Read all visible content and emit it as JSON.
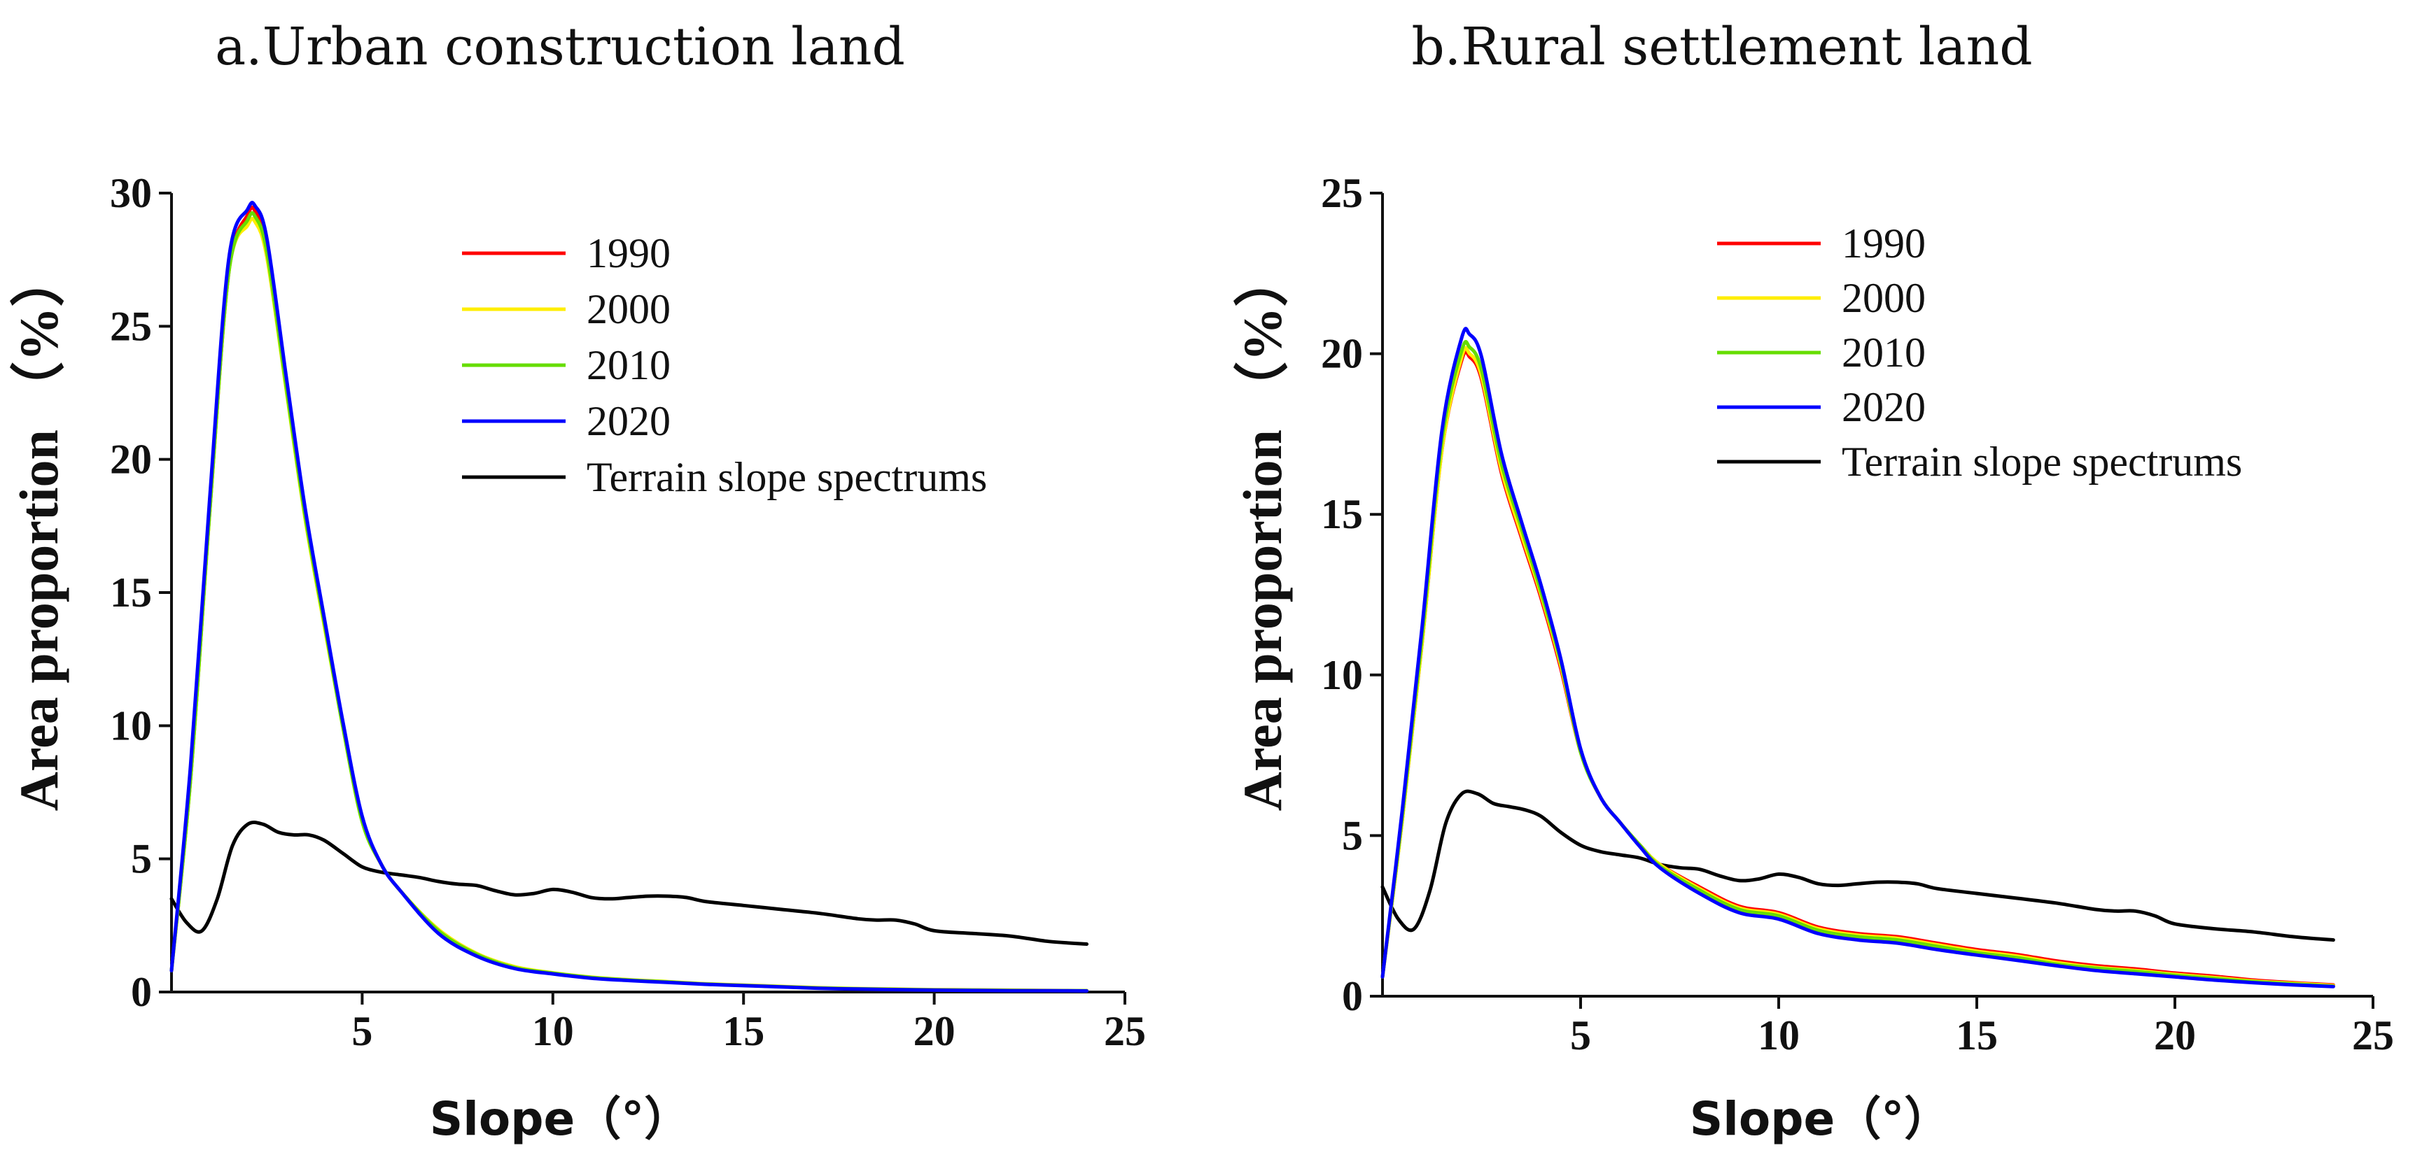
{
  "chart_data": [
    {
      "id": "a",
      "type": "line",
      "title": "a.Urban construction land",
      "xlabel": "Slope（°）",
      "ylabel": "Area proportion （%）",
      "xlim": [
        0,
        25
      ],
      "ylim": [
        0,
        30
      ],
      "xticks": [
        5,
        10,
        15,
        20,
        25
      ],
      "yticks": [
        0,
        5,
        10,
        15,
        20,
        25,
        30
      ],
      "series": [
        {
          "name": "1990",
          "color": "#ff0000",
          "x": [
            0,
            0.5,
            1,
            1.5,
            2,
            2.2,
            2.5,
            3,
            3.5,
            4,
            4.5,
            5,
            5.5,
            6,
            7,
            8,
            9,
            10,
            11,
            12,
            13,
            14,
            15,
            16,
            17,
            18,
            19,
            20,
            21,
            22,
            23,
            24
          ],
          "values": [
            0.8,
            8,
            18,
            27,
            29.2,
            29.3,
            28,
            23,
            18,
            14,
            10,
            6.5,
            4.8,
            3.8,
            2.3,
            1.4,
            0.9,
            0.7,
            0.55,
            0.45,
            0.38,
            0.3,
            0.25,
            0.2,
            0.15,
            0.12,
            0.1,
            0.08,
            0.07,
            0.06,
            0.05,
            0.05
          ]
        },
        {
          "name": "2000",
          "color": "#ffee00",
          "x": [
            0,
            0.5,
            1,
            1.5,
            2,
            2.2,
            2.5,
            3,
            3.5,
            4,
            4.5,
            5,
            5.5,
            6,
            7,
            8,
            9,
            10,
            11,
            12,
            13,
            14,
            15,
            16,
            17,
            18,
            19,
            20,
            21,
            22,
            23,
            24
          ],
          "values": [
            0.8,
            8,
            18,
            27,
            28.8,
            28.9,
            27.6,
            22.7,
            17.8,
            13.8,
            9.9,
            6.4,
            4.8,
            3.8,
            2.35,
            1.45,
            0.95,
            0.72,
            0.56,
            0.46,
            0.39,
            0.31,
            0.26,
            0.21,
            0.16,
            0.13,
            0.11,
            0.09,
            0.08,
            0.07,
            0.06,
            0.05
          ]
        },
        {
          "name": "2010",
          "color": "#66dd00",
          "x": [
            0,
            0.5,
            1,
            1.5,
            2,
            2.2,
            2.5,
            3,
            3.5,
            4,
            4.5,
            5,
            5.5,
            6,
            7,
            8,
            9,
            10,
            11,
            12,
            13,
            14,
            15,
            16,
            17,
            18,
            19,
            20,
            21,
            22,
            23,
            24
          ],
          "values": [
            0.8,
            8,
            18,
            27,
            29,
            29.1,
            27.8,
            22.8,
            17.9,
            13.9,
            9.9,
            6.4,
            4.8,
            3.8,
            2.3,
            1.42,
            0.92,
            0.71,
            0.55,
            0.45,
            0.38,
            0.3,
            0.25,
            0.2,
            0.15,
            0.12,
            0.1,
            0.08,
            0.07,
            0.06,
            0.05,
            0.05
          ]
        },
        {
          "name": "2020",
          "color": "#0000ff",
          "x": [
            0,
            0.5,
            1,
            1.5,
            2,
            2.2,
            2.5,
            3,
            3.5,
            4,
            4.5,
            5,
            5.5,
            6,
            7,
            8,
            9,
            10,
            11,
            12,
            13,
            14,
            15,
            16,
            17,
            18,
            19,
            20,
            21,
            22,
            23,
            24
          ],
          "values": [
            0.8,
            8.5,
            18.5,
            27.5,
            29.4,
            29.5,
            28.3,
            23.2,
            18.2,
            14.1,
            10.1,
            6.6,
            4.8,
            3.8,
            2.2,
            1.35,
            0.88,
            0.68,
            0.52,
            0.43,
            0.36,
            0.29,
            0.24,
            0.19,
            0.14,
            0.11,
            0.09,
            0.07,
            0.06,
            0.05,
            0.05,
            0.04
          ]
        },
        {
          "name": "Terrain slope spectrums",
          "color": "#000000",
          "x": [
            0,
            0.4,
            0.8,
            1.2,
            1.6,
            2,
            2.4,
            2.8,
            3.2,
            3.6,
            4,
            4.5,
            5,
            5.5,
            6,
            6.5,
            7,
            7.5,
            8,
            8.5,
            9,
            9.5,
            10,
            10.5,
            11,
            11.5,
            12,
            12.5,
            13,
            13.5,
            14,
            15,
            16,
            17,
            18,
            18.5,
            19,
            19.5,
            20,
            21,
            22,
            23,
            24
          ],
          "values": [
            3.5,
            2.6,
            2.3,
            3.5,
            5.5,
            6.3,
            6.3,
            6.0,
            5.9,
            5.9,
            5.7,
            5.2,
            4.7,
            4.5,
            4.4,
            4.3,
            4.15,
            4.05,
            4.0,
            3.8,
            3.65,
            3.7,
            3.85,
            3.75,
            3.55,
            3.5,
            3.55,
            3.6,
            3.6,
            3.55,
            3.4,
            3.25,
            3.1,
            2.95,
            2.75,
            2.7,
            2.7,
            2.55,
            2.3,
            2.2,
            2.1,
            1.9,
            1.8
          ]
        }
      ],
      "legend": "upper-center"
    },
    {
      "id": "b",
      "type": "line",
      "title": "b.Rural settlement land",
      "xlabel": "Slope（°）",
      "ylabel": "Area proportion （%）",
      "xlim": [
        0,
        25
      ],
      "ylim": [
        0,
        25
      ],
      "xticks": [
        5,
        10,
        15,
        20,
        25
      ],
      "yticks": [
        0,
        5,
        10,
        15,
        20,
        25
      ],
      "series": [
        {
          "name": "1990",
          "color": "#ff0000",
          "x": [
            0,
            0.5,
            1,
            1.5,
            2,
            2.2,
            2.5,
            3,
            3.5,
            4,
            4.5,
            5,
            5.5,
            6,
            6.5,
            7,
            8,
            9,
            10,
            11,
            12,
            13,
            14,
            15,
            16,
            17,
            18,
            19,
            20,
            21,
            22,
            23,
            24
          ],
          "values": [
            0.6,
            5.5,
            11,
            17,
            19.8,
            19.9,
            19.2,
            16.3,
            14.3,
            12.4,
            10.2,
            7.6,
            6.2,
            5.4,
            4.7,
            4.1,
            3.4,
            2.8,
            2.6,
            2.15,
            1.95,
            1.85,
            1.65,
            1.45,
            1.3,
            1.1,
            0.95,
            0.85,
            0.72,
            0.62,
            0.5,
            0.42,
            0.35
          ]
        },
        {
          "name": "2000",
          "color": "#ffee00",
          "x": [
            0,
            0.5,
            1,
            1.5,
            2,
            2.2,
            2.5,
            3,
            3.5,
            4,
            4.5,
            5,
            5.5,
            6,
            6.5,
            7,
            8,
            9,
            10,
            11,
            12,
            13,
            14,
            15,
            16,
            17,
            18,
            19,
            20,
            21,
            22,
            23,
            24
          ],
          "values": [
            0.6,
            5.5,
            11,
            17,
            19.9,
            20.0,
            19.3,
            16.4,
            14.4,
            12.5,
            10.3,
            7.6,
            6.2,
            5.4,
            4.7,
            4.1,
            3.35,
            2.75,
            2.55,
            2.1,
            1.9,
            1.8,
            1.6,
            1.4,
            1.25,
            1.05,
            0.9,
            0.8,
            0.68,
            0.58,
            0.47,
            0.4,
            0.33
          ]
        },
        {
          "name": "2010",
          "color": "#66dd00",
          "x": [
            0,
            0.5,
            1,
            1.5,
            2,
            2.2,
            2.5,
            3,
            3.5,
            4,
            4.5,
            5,
            5.5,
            6,
            6.5,
            7,
            8,
            9,
            10,
            11,
            12,
            13,
            14,
            15,
            16,
            17,
            18,
            19,
            20,
            21,
            22,
            23,
            24
          ],
          "values": [
            0.6,
            5.6,
            11.2,
            17.3,
            20.1,
            20.2,
            19.5,
            16.6,
            14.6,
            12.6,
            10.4,
            7.6,
            6.2,
            5.4,
            4.7,
            4.05,
            3.3,
            2.7,
            2.5,
            2.05,
            1.85,
            1.75,
            1.55,
            1.35,
            1.2,
            1.0,
            0.87,
            0.77,
            0.65,
            0.55,
            0.45,
            0.38,
            0.31
          ]
        },
        {
          "name": "2020",
          "color": "#0000ff",
          "x": [
            0,
            0.5,
            1,
            1.5,
            2,
            2.2,
            2.5,
            3,
            3.5,
            4,
            4.5,
            5,
            5.5,
            6,
            6.5,
            7,
            8,
            9,
            10,
            11,
            12,
            13,
            14,
            15,
            16,
            17,
            18,
            19,
            20,
            21,
            22,
            23,
            24
          ],
          "values": [
            0.6,
            5.8,
            11.5,
            17.6,
            20.5,
            20.6,
            19.9,
            16.9,
            14.8,
            12.8,
            10.5,
            7.7,
            6.2,
            5.4,
            4.65,
            4.0,
            3.2,
            2.6,
            2.4,
            1.95,
            1.75,
            1.65,
            1.45,
            1.28,
            1.12,
            0.95,
            0.8,
            0.7,
            0.6,
            0.5,
            0.42,
            0.35,
            0.3
          ]
        },
        {
          "name": "Terrain slope spectrums",
          "color": "#000000",
          "x": [
            0,
            0.4,
            0.8,
            1.2,
            1.6,
            2,
            2.4,
            2.8,
            3.2,
            3.6,
            4,
            4.5,
            5,
            5.5,
            6,
            6.5,
            7,
            7.5,
            8,
            8.5,
            9,
            9.5,
            10,
            10.5,
            11,
            11.5,
            12,
            12.5,
            13,
            13.5,
            14,
            15,
            16,
            17,
            18,
            18.5,
            19,
            19.5,
            20,
            21,
            22,
            23,
            24
          ],
          "values": [
            3.4,
            2.4,
            2.1,
            3.3,
            5.4,
            6.3,
            6.3,
            6.0,
            5.9,
            5.8,
            5.6,
            5.1,
            4.7,
            4.5,
            4.4,
            4.3,
            4.1,
            4.0,
            3.95,
            3.75,
            3.6,
            3.65,
            3.8,
            3.7,
            3.5,
            3.45,
            3.5,
            3.55,
            3.55,
            3.5,
            3.35,
            3.2,
            3.05,
            2.9,
            2.7,
            2.65,
            2.65,
            2.5,
            2.25,
            2.1,
            2.0,
            1.85,
            1.75
          ]
        }
      ],
      "legend": "upper-center"
    }
  ]
}
